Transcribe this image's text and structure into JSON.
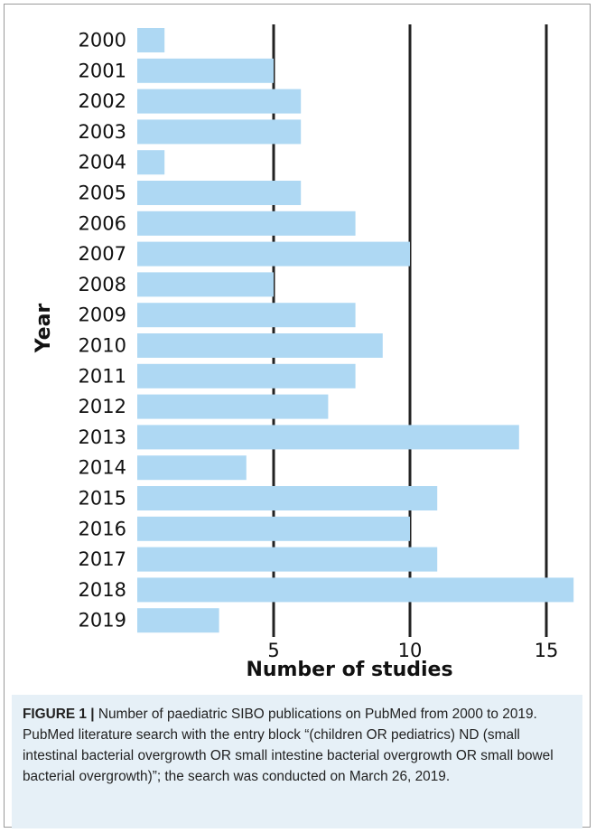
{
  "chart_data": {
    "type": "bar",
    "orientation": "horizontal",
    "categories": [
      "2000",
      "2001",
      "2002",
      "2003",
      "2004",
      "2005",
      "2006",
      "2007",
      "2008",
      "2009",
      "2010",
      "2011",
      "2012",
      "2013",
      "2014",
      "2015",
      "2016",
      "2017",
      "2018",
      "2019"
    ],
    "values": [
      1,
      5,
      6,
      6,
      1,
      6,
      8,
      10,
      5,
      8,
      9,
      8,
      7,
      14,
      4,
      11,
      10,
      11,
      16,
      3
    ],
    "xlabel": "Number of studies",
    "ylabel": "Year",
    "x_ticks": [
      5,
      10,
      15
    ],
    "xlim": [
      0,
      16
    ],
    "grid": "vertical lines at ticks",
    "bar_color": "#aed8f3",
    "grid_color": "#222222"
  },
  "caption": {
    "label": "FIGURE 1 |",
    "text": " Number of paediatric SIBO publications on PubMed from 2000 to 2019. PubMed literature search with the entry block “(children OR pediatrics) ND (small intestinal bacterial overgrowth OR small intestine bacterial overgrowth OR small bowel bacterial overgrowth)”; the search was conducted on March 26, 2019."
  }
}
